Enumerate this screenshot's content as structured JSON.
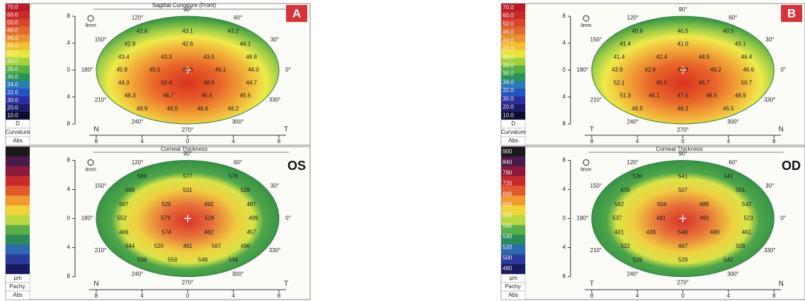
{
  "panels": [
    {
      "label": "A",
      "maps": [
        {
          "kind": "curvature",
          "title": "Sagittal Curvature (Front)",
          "scale_labels": [
            "70.0",
            "60.0",
            "50.0",
            "48.0",
            "46.0",
            "44.0",
            "42.0",
            "40.0",
            "38.0",
            "36.0",
            "34.0",
            "32.0",
            "30.0",
            "20.0",
            "10.0"
          ],
          "scale_footer": [
            "D",
            "Curvature",
            "Abs"
          ],
          "zoom": "9mm",
          "angles": [
            "0°",
            "30°",
            "60°",
            "90°",
            "120°",
            "150°",
            "180°",
            "210°",
            "240°",
            "270°",
            "300°",
            "330°"
          ],
          "yticks": [
            "8",
            "4",
            "0",
            "4",
            "8"
          ],
          "xticks": [
            "8",
            "4",
            "0",
            "4",
            "8"
          ],
          "left_side": "N",
          "right_side": "T",
          "values": [
            "42.8",
            "43.1",
            "43.2",
            "42.9",
            "42.6",
            "44.1",
            "43.4",
            "43.3",
            "43.5",
            "48.8",
            "45.9",
            "45.0",
            "48.5",
            "46.1",
            "44.0",
            "44.3",
            "50.4",
            "48.9",
            "44.7",
            "48.3",
            "46.7",
            "45.5",
            "45.5",
            "48.9",
            "46.5",
            "46.6",
            "46.2"
          ]
        },
        {
          "kind": "thickness",
          "title": "Corneal Thickness",
          "eye": "OS",
          "scale_labels": [],
          "scale_footer": [
            "µm",
            "Pachy.",
            "Abs"
          ],
          "zoom": "9mm",
          "angles": [
            "0°",
            "30°",
            "60°",
            "90°",
            "120°",
            "150°",
            "180°",
            "210°",
            "240°",
            "270°",
            "300°",
            "330°"
          ],
          "yticks": [
            "8",
            "4",
            "0",
            "4",
            "8"
          ],
          "xticks": [
            "8",
            "4",
            "0",
            "4",
            "8"
          ],
          "left_side": "N",
          "right_side": "T",
          "values": [
            "569",
            "577",
            "578",
            "568",
            "531",
            "528",
            "567",
            "525",
            "492",
            "487",
            "552",
            "573",
            "528",
            "499",
            "466",
            "574",
            "482",
            "457",
            "544",
            "520",
            "481",
            "567",
            "496",
            "538",
            "558",
            "548",
            "534"
          ]
        }
      ]
    },
    {
      "label": "B",
      "maps": [
        {
          "kind": "curvature",
          "scale_labels": [
            "70.0",
            "60.0",
            "50.0",
            "46.0",
            "44.0",
            "42.0",
            "40.0",
            "38.0",
            "36.0",
            "34.0",
            "32.0",
            "30.0",
            "20.0",
            "10.0"
          ],
          "scale_footer": [
            "D",
            "Curvature",
            "Abs"
          ],
          "zoom": "9mm",
          "angles": [
            "0°",
            "30°",
            "60°",
            "90°",
            "120°",
            "150°",
            "180°",
            "210°",
            "240°",
            "270°",
            "300°",
            "330°"
          ],
          "yticks": [
            "8",
            "4",
            "0",
            "4",
            "8"
          ],
          "xticks": [
            "8",
            "4",
            "0",
            "4",
            "8"
          ],
          "left_side": "T",
          "right_side": "N",
          "values": [
            "40.9",
            "40.5",
            "40.5",
            "41.4",
            "41.0",
            "43.1",
            "41.4",
            "42.4",
            "44.9",
            "46.4",
            "43.9",
            "42.9",
            "43.9",
            "49.2",
            "46.6",
            "52.1",
            "45.5",
            "45.7",
            "50.7",
            "51.3",
            "46.1",
            "47.5",
            "48.5",
            "48.9",
            "48.5",
            "46.1",
            "45.5"
          ]
        },
        {
          "kind": "thickness",
          "title": "Corneal Thickness",
          "eye": "OD",
          "scale_labels": [
            "900",
            "840",
            "780",
            "720",
            "660",
            "600",
            "580",
            "560",
            "540",
            "520",
            "500",
            "480"
          ],
          "scale_footer": [
            "µm",
            "Pachy.",
            "Abs"
          ],
          "zoom": "9mm",
          "angles": [
            "0°",
            "30°",
            "60°",
            "90°",
            "120°",
            "150°",
            "180°",
            "210°",
            "240°",
            "270°",
            "300°",
            "330°"
          ],
          "yticks": [
            "8",
            "4",
            "0",
            "4",
            "8"
          ],
          "xticks": [
            "8",
            "4",
            "0",
            "4",
            "8"
          ],
          "left_side": "T",
          "right_side": "N",
          "values": [
            "536",
            "541",
            "541",
            "539",
            "507",
            "501",
            "542",
            "504",
            "488",
            "543",
            "537",
            "481",
            "491",
            "523",
            "431",
            "436",
            "548",
            "488",
            "461",
            "522",
            "467",
            "508",
            "529",
            "529",
            "542"
          ]
        }
      ]
    }
  ]
}
